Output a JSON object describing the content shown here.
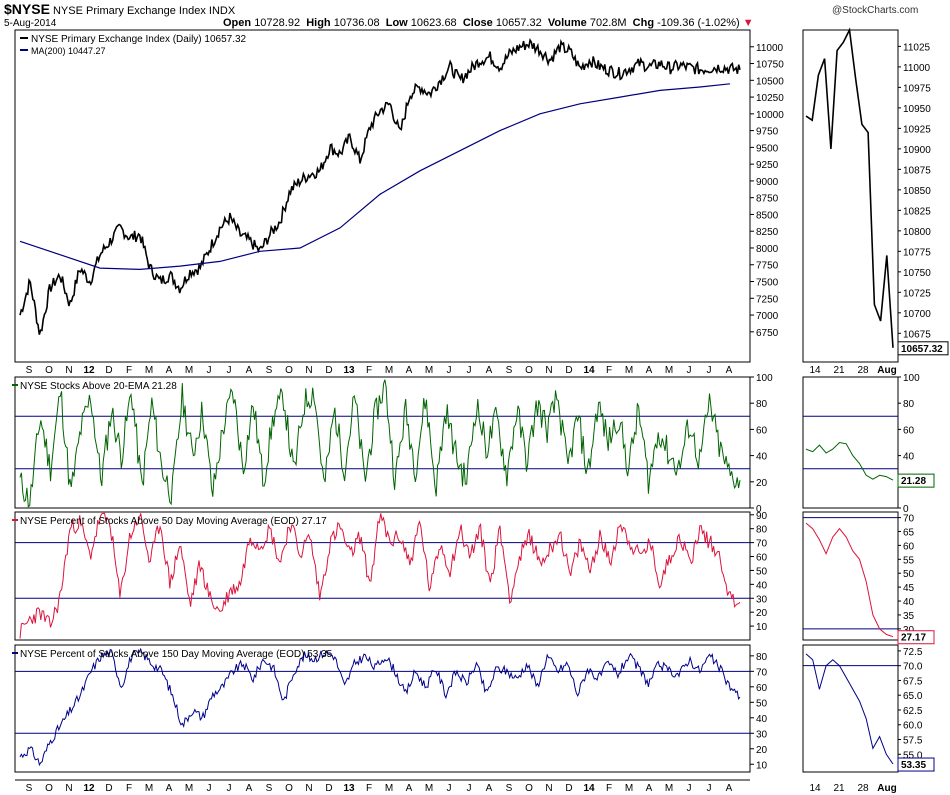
{
  "header": {
    "symbol": "$NYSE",
    "name": "NYSE Primary Exchange Index",
    "exchange": "INDX",
    "date": "5-Aug-2014",
    "watermark": "@StockCharts.com",
    "open_label": "Open",
    "open": "10728.92",
    "high_label": "High",
    "high": "10736.08",
    "low_label": "Low",
    "low": "10623.68",
    "close_label": "Close",
    "close": "10657.32",
    "volume_label": "Volume",
    "volume": "702.8M",
    "chg_label": "Chg",
    "chg": "-109.36 (-1.02%)"
  },
  "colors": {
    "price": "#000000",
    "ma": "#000080",
    "ema20": "#006400",
    "ma50": "#dc143c",
    "ma150": "#00008b",
    "grid": "#000080"
  },
  "chart_data": [
    {
      "type": "line",
      "panel": "price",
      "legend": [
        {
          "label": "NYSE Primary Exchange Index (Daily) 10657.32",
          "color": "#000000"
        },
        {
          "label": "MA(200) 10447.27",
          "color": "#000080"
        }
      ],
      "ylim": [
        6300,
        11250
      ],
      "y_ticks": [
        "6750",
        "7000",
        "7250",
        "7500",
        "7750",
        "8000",
        "8250",
        "8500",
        "8750",
        "9000",
        "9250",
        "9500",
        "9750",
        "10000",
        "10250",
        "10500",
        "10750",
        "11000"
      ],
      "x_labels": [
        "S",
        "O",
        "N",
        "12",
        "D",
        "F",
        "M",
        "A",
        "M",
        "J",
        "J",
        "A",
        "S",
        "O",
        "N",
        "D",
        "13",
        "F",
        "M",
        "A",
        "M",
        "J",
        "J",
        "A",
        "S",
        "O",
        "N",
        "D",
        "14",
        "F",
        "M",
        "A",
        "M",
        "J",
        "J",
        "A"
      ],
      "series": [
        {
          "name": "NYSE Primary Exchange Index",
          "months": [
            0,
            0.5,
            1,
            1.5,
            2,
            2.5,
            3,
            3.5,
            4,
            4.5,
            5,
            5.5,
            6,
            6.5,
            7,
            7.5,
            8,
            8.5,
            9,
            9.5,
            10,
            10.5,
            11,
            11.5,
            12,
            12.5,
            13,
            13.5,
            14,
            14.5,
            15,
            15.5,
            16,
            16.5,
            17,
            17.5,
            18,
            18.5,
            19,
            19.5,
            20,
            20.5,
            21,
            21.5,
            22,
            22.5,
            23,
            23.5,
            24,
            24.5,
            25,
            25.5,
            26,
            26.5,
            27,
            27.5,
            28,
            28.5,
            29,
            29.5,
            30,
            30.5,
            31,
            31.5,
            32,
            32.5,
            33,
            33.5,
            34,
            34.5,
            35,
            35.5,
            36
          ],
          "values": [
            7000,
            7500,
            6700,
            7400,
            7600,
            7150,
            7700,
            7500,
            7900,
            8100,
            8300,
            8150,
            8200,
            7700,
            7500,
            7600,
            7400,
            7650,
            7700,
            8000,
            8300,
            8450,
            8200,
            8100,
            7950,
            8200,
            8400,
            8850,
            9000,
            9100,
            9150,
            9500,
            9400,
            9650,
            9300,
            9800,
            10050,
            10150,
            9700,
            10300,
            10400,
            10300,
            10500,
            10700,
            10500,
            10650,
            10800,
            10850,
            10700,
            10900,
            11000,
            11050,
            10950,
            10800,
            11000,
            10930,
            10680,
            10800,
            10700,
            10650,
            10600,
            10680,
            10750,
            10700,
            10750,
            10680,
            10720,
            10690,
            10660,
            10680,
            10700,
            10670,
            10657.32
          ]
        },
        {
          "name": "MA(200)",
          "months": [
            0,
            2,
            4,
            6,
            8,
            10,
            12,
            14,
            16,
            18,
            20,
            22,
            24,
            26,
            28,
            30,
            32,
            34,
            35.5
          ],
          "values": [
            8100,
            7900,
            7700,
            7680,
            7730,
            7800,
            7950,
            8000,
            8300,
            8800,
            9150,
            9450,
            9750,
            10000,
            10150,
            10250,
            10350,
            10400,
            10447.27
          ]
        }
      ]
    },
    {
      "type": "line",
      "panel": "price-zoom",
      "ylim": [
        10640,
        11045
      ],
      "y_ticks": [
        "10675",
        "10700",
        "10725",
        "10750",
        "10775",
        "10800",
        "10825",
        "10850",
        "10875",
        "10900",
        "10925",
        "10950",
        "10975",
        "11000",
        "11025"
      ],
      "x_labels": [
        "14",
        "21",
        "28",
        "Aug"
      ],
      "last_value": "10657.32",
      "series": [
        {
          "name": "NYSE Primary Exchange Index",
          "values": [
            10940,
            10935,
            10990,
            11010,
            10900,
            11020,
            11030,
            11045,
            10985,
            10930,
            10920,
            10710,
            10690,
            10770,
            10657.32
          ]
        }
      ]
    },
    {
      "type": "line",
      "panel": "ema20",
      "legend": [
        {
          "label": "NYSE Stocks Above 20-EMA 21.28",
          "color": "#006400"
        }
      ],
      "ylim": [
        0,
        100
      ],
      "y_ticks": [
        "0",
        "20",
        "40",
        "60",
        "80",
        "100"
      ],
      "reference_lines": [
        30,
        70
      ],
      "zoom_last_value": "21.28",
      "series": [
        {
          "name": "NYSE Stocks Above 20-EMA",
          "values": [
            20,
            5,
            70,
            30,
            90,
            10,
            60,
            85,
            20,
            75,
            40,
            90,
            15,
            80,
            30,
            10,
            85,
            40,
            75,
            10,
            60,
            90,
            30,
            80,
            20,
            70,
            85,
            25,
            80,
            90,
            15,
            75,
            30,
            85,
            20,
            70,
            95,
            20,
            75,
            30,
            85,
            15,
            75,
            40,
            20,
            80,
            45,
            70,
            25,
            75,
            35,
            80,
            60,
            85,
            30,
            70,
            25,
            80,
            50,
            70,
            30,
            75,
            20,
            60,
            40,
            30,
            65,
            35,
            80,
            45,
            25,
            21.28
          ]
        },
        {
          "name": "zoom",
          "values": [
            45,
            43,
            48,
            42,
            45,
            50,
            49,
            40,
            34,
            25,
            22,
            25,
            24,
            21.28
          ]
        }
      ]
    },
    {
      "type": "line",
      "panel": "ma50",
      "legend": [
        {
          "label": "NYSE Percent of Stocks Above 50 Day Moving Average (EOD) 27.17",
          "color": "#dc143c"
        }
      ],
      "ylim": [
        0,
        92
      ],
      "y_ticks": [
        "10",
        "20",
        "30",
        "40",
        "50",
        "60",
        "70",
        "80",
        "90"
      ],
      "reference_lines": [
        30,
        70
      ],
      "zoom_ylim": [
        26,
        72
      ],
      "zoom_y_ticks": [
        "30",
        "35",
        "40",
        "45",
        "50",
        "55",
        "60",
        "65",
        "70"
      ],
      "zoom_last_value": "27.17",
      "series": [
        {
          "name": "NYSE % Above 50 DMA",
          "values": [
            5,
            15,
            20,
            10,
            30,
            80,
            85,
            60,
            88,
            85,
            30,
            75,
            90,
            55,
            85,
            40,
            70,
            25,
            55,
            30,
            20,
            35,
            40,
            75,
            68,
            80,
            55,
            85,
            62,
            75,
            30,
            70,
            82,
            60,
            75,
            40,
            90,
            70,
            75,
            55,
            85,
            35,
            70,
            50,
            80,
            60,
            80,
            40,
            80,
            30,
            60,
            75,
            55,
            65,
            78,
            45,
            70,
            50,
            75,
            55,
            85,
            70,
            60,
            70,
            40,
            60,
            75,
            55,
            80,
            70,
            60,
            30,
            27.17
          ]
        },
        {
          "name": "zoom",
          "values": [
            68,
            66,
            62,
            57,
            63,
            66,
            63,
            58,
            55,
            47,
            35,
            30,
            28,
            27.17
          ]
        }
      ]
    },
    {
      "type": "line",
      "panel": "ma150",
      "legend": [
        {
          "label": "NYSE Percent of Stocks Above 150 Day Moving Average (EOD) 53.35",
          "color": "#00008b"
        }
      ],
      "ylim": [
        5,
        87
      ],
      "y_ticks": [
        "10",
        "20",
        "30",
        "40",
        "50",
        "60",
        "70",
        "80"
      ],
      "reference_lines": [
        30,
        70
      ],
      "zoom_ylim": [
        52,
        73.5
      ],
      "zoom_y_ticks": [
        "55.0",
        "57.5",
        "60.0",
        "62.5",
        "65.0",
        "67.5",
        "70.0",
        "72.5"
      ],
      "zoom_last_value": "53.35",
      "series": [
        {
          "name": "NYSE % Above 150 DMA",
          "values": [
            15,
            20,
            10,
            25,
            35,
            45,
            55,
            70,
            80,
            82,
            60,
            80,
            82,
            75,
            70,
            55,
            35,
            45,
            40,
            55,
            60,
            70,
            75,
            65,
            78,
            72,
            50,
            70,
            80,
            78,
            82,
            80,
            60,
            75,
            80,
            72,
            80,
            70,
            55,
            70,
            60,
            72,
            55,
            70,
            62,
            75,
            55,
            72,
            70,
            65,
            75,
            60,
            80,
            70,
            75,
            55,
            72,
            65,
            75,
            68,
            80,
            72,
            62,
            75,
            70,
            68,
            78,
            70,
            80,
            72,
            60,
            53.35
          ]
        },
        {
          "name": "zoom",
          "values": [
            72,
            71,
            66,
            70,
            71,
            70,
            68,
            66,
            64,
            61,
            56,
            58,
            55,
            53.35
          ]
        }
      ]
    }
  ]
}
